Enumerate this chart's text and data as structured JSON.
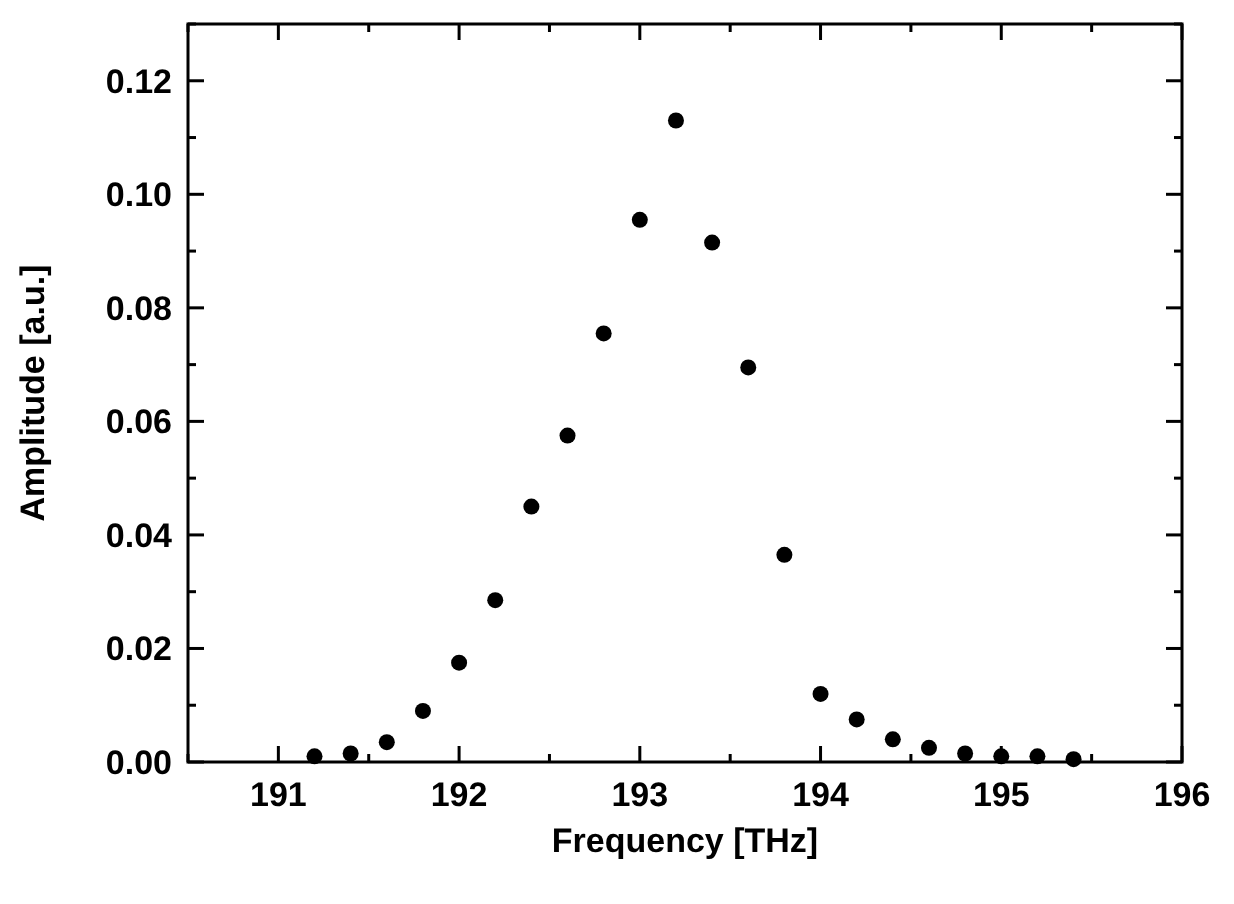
{
  "chart_data": {
    "type": "scatter",
    "xlabel": "Frequency [THz]",
    "ylabel": "Amplitude [a.u.]",
    "xlim": [
      190.5,
      196
    ],
    "ylim": [
      0,
      0.13
    ],
    "xticks": [
      191,
      192,
      193,
      194,
      195,
      196
    ],
    "yticks": [
      {
        "value": 0,
        "label": "0.00"
      },
      {
        "value": 0.02,
        "label": "0.02"
      },
      {
        "value": 0.04,
        "label": "0.04"
      },
      {
        "value": 0.06,
        "label": "0.06"
      },
      {
        "value": 0.08,
        "label": "0.08"
      },
      {
        "value": 0.1,
        "label": "0.10"
      },
      {
        "value": 0.12,
        "label": "0.12"
      }
    ],
    "grid": false,
    "marker": "circle",
    "series": [
      {
        "color": "#000000",
        "x": [
          191.2,
          191.4,
          191.6,
          191.8,
          192.0,
          192.2,
          192.4,
          192.6,
          192.8,
          193.0,
          193.2,
          193.4,
          193.6,
          193.8,
          194.0,
          194.2,
          194.4,
          194.6,
          194.8,
          195.0,
          195.2,
          195.4
        ],
        "values": [
          0.001,
          0.0015,
          0.0035,
          0.009,
          0.0175,
          0.0285,
          0.045,
          0.0575,
          0.0755,
          0.0955,
          0.113,
          0.0915,
          0.0695,
          0.0365,
          0.012,
          0.0075,
          0.004,
          0.0025,
          0.0015,
          0.001,
          0.001,
          0.0005
        ]
      }
    ]
  }
}
